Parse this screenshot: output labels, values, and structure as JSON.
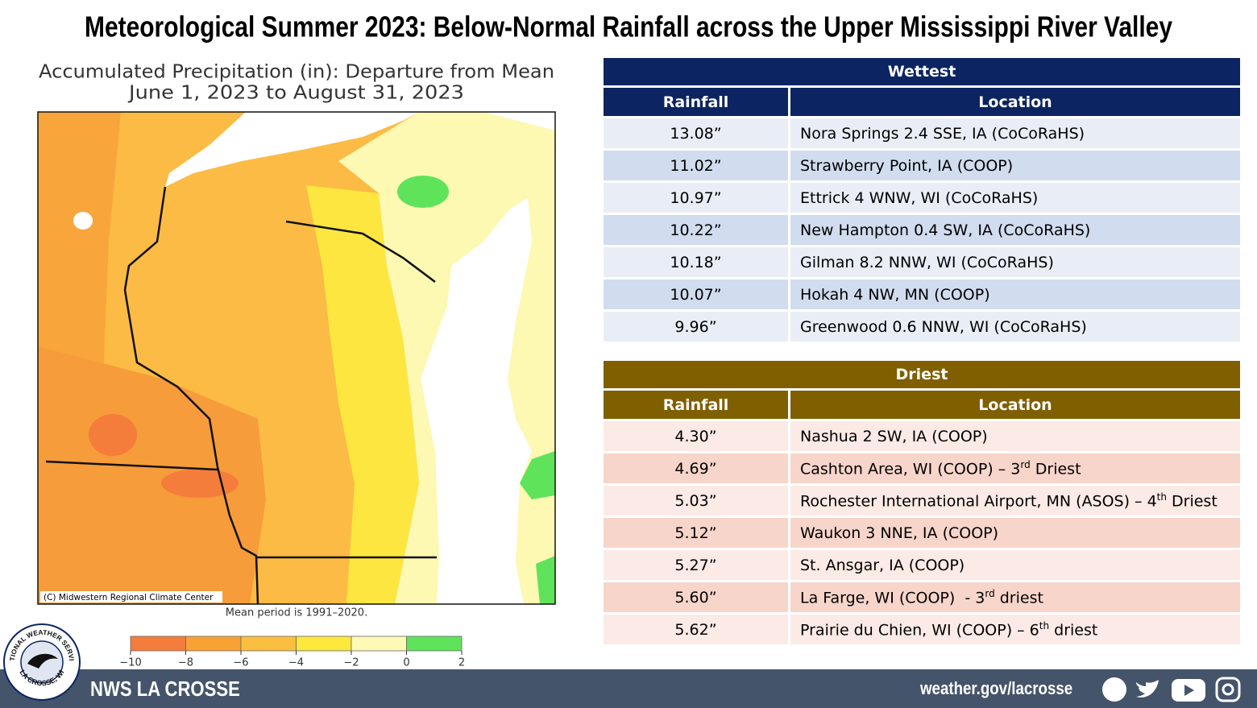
{
  "title": "Meteorological Summer 2023:  Below-Normal Rainfall across the Upper Mississippi River Valley",
  "map": {
    "subtitle_lines": [
      "Accumulated Precipitation (in): Departure from Mean",
      "June 1, 2023 to August 31, 2023"
    ],
    "credit": "(C) Midwestern Regional Climate Center",
    "mean_period": "Mean period is 1991–2020.",
    "legend": {
      "ticks": [
        "−10",
        "−8",
        "−6",
        "−4",
        "−2",
        "0",
        "2"
      ],
      "colors": [
        "#f47d3c",
        "#f8a236",
        "#fbbf40",
        "#fde83c",
        "#fefab6",
        "#5fe35b"
      ]
    }
  },
  "wettest": {
    "title": "Wettest",
    "columns": [
      "Rainfall",
      "Location"
    ],
    "header_color": "#0c2461",
    "row_colors": [
      "#e9eef6",
      "#d1dcee"
    ],
    "rows": [
      {
        "rainfall": "13.08”",
        "location": "Nora Springs 2.4 SSE, IA (CoCoRaHS)"
      },
      {
        "rainfall": "11.02”",
        "location": "Strawberry Point, IA (COOP)"
      },
      {
        "rainfall": "10.97”",
        "location": "Ettrick 4 WNW, WI (CoCoRaHS)"
      },
      {
        "rainfall": "10.22”",
        "location": "New Hampton 0.4 SW, IA (CoCoRaHS)"
      },
      {
        "rainfall": "10.18”",
        "location": "Gilman 8.2 NNW, WI (CoCoRaHS)"
      },
      {
        "rainfall": "10.07”",
        "location": "Hokah 4 NW, MN (COOP)"
      },
      {
        "rainfall": "9.96”",
        "location": "Greenwood 0.6 NNW, WI (CoCoRaHS)"
      }
    ]
  },
  "driest": {
    "title": "Driest",
    "columns": [
      "Rainfall",
      "Location"
    ],
    "header_color": "#7f5f00",
    "row_colors": [
      "#fbeae5",
      "#f7d5ca"
    ],
    "rows": [
      {
        "rainfall": "4.30”",
        "location": "Nashua 2 SW, IA (COOP)"
      },
      {
        "rainfall": "4.69”",
        "location": {
          "text": "Cashton Area, WI (COOP) – 3",
          "sup": "rd",
          "after": " Driest"
        }
      },
      {
        "rainfall": "5.03”",
        "location": {
          "text": "Rochester International Airport, MN (ASOS) – 4",
          "sup": "th",
          "after": " Driest"
        }
      },
      {
        "rainfall": "5.12”",
        "location": "Waukon 3 NNE, IA (COOP)"
      },
      {
        "rainfall": "5.27”",
        "location": "St. Ansgar, IA (COOP)"
      },
      {
        "rainfall": "5.60”",
        "location": {
          "text": "La Farge, WI (COOP)  - 3",
          "sup": "rd",
          "after": " driest"
        }
      },
      {
        "rainfall": "5.62”",
        "location": {
          "text": "Prairie du Chien, WI (COOP) – 6",
          "sup": "th",
          "after": " driest"
        }
      }
    ]
  },
  "footer": {
    "office": "NWS LA CROSSE",
    "url": "weather.gov/lacrosse",
    "logo_top": "NATIONAL WEATHER SERVICE",
    "logo_bottom": "LA CROSSE, WI"
  }
}
